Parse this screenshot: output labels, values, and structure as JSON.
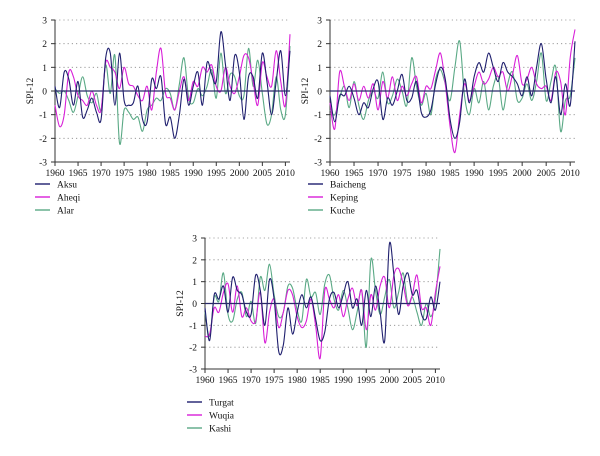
{
  "chart_data": [
    {
      "type": "line",
      "ylabel": "SPI-12",
      "ylim": [
        -3,
        3
      ],
      "yticks": [
        -3,
        -2,
        -1,
        0,
        1,
        2,
        3
      ],
      "xlim": [
        1960,
        2011
      ],
      "xticks": [
        "1960",
        "1965",
        "1970",
        "1975",
        "1980",
        "1985",
        "1990",
        "1995",
        "2000",
        "2005",
        "2010"
      ],
      "grid": "horizontal dotted",
      "legend_position": "below",
      "series": [
        {
          "name": "Aksu",
          "color": "#1f1f6e",
          "x": [
            1960,
            1961,
            1962,
            1963,
            1964,
            1965,
            1966,
            1967,
            1968,
            1969,
            1970,
            1971,
            1972,
            1973,
            1974,
            1975,
            1976,
            1977,
            1978,
            1979,
            1980,
            1981,
            1982,
            1983,
            1984,
            1985,
            1986,
            1987,
            1988,
            1989,
            1990,
            1991,
            1992,
            1993,
            1994,
            1995,
            1996,
            1997,
            1998,
            1999,
            2000,
            2001,
            2002,
            2003,
            2004,
            2005,
            2006,
            2007,
            2008,
            2009,
            2010,
            2011
          ],
          "values": [
            0.2,
            -0.7,
            0.8,
            0.5,
            -0.6,
            0.4,
            -1.1,
            -0.8,
            -0.3,
            -0.9,
            -1.2,
            1.4,
            1.6,
            -0.6,
            1.6,
            -0.4,
            -0.6,
            -0.5,
            0.2,
            -1.2,
            -1.3,
            0.5,
            0.1,
            0.6,
            -1.4,
            -1.1,
            -2.0,
            -1.0,
            0.5,
            -0.6,
            0.2,
            0.8,
            -0.6,
            1.2,
            0.7,
            0.4,
            2.5,
            1.1,
            -0.4,
            1.5,
            0.8,
            -1.2,
            0.6,
            0.6,
            -0.3,
            1.6,
            0.4,
            -1.0,
            0.4,
            1.7,
            -0.2,
            1.7
          ]
        },
        {
          "name": "Aheqi",
          "color": "#d81fd8",
          "x": [
            1960,
            1961,
            1962,
            1963,
            1964,
            1965,
            1966,
            1967,
            1968,
            1969,
            1970,
            1971,
            1972,
            1973,
            1974,
            1975,
            1976,
            1977,
            1978,
            1979,
            1980,
            1981,
            1982,
            1983,
            1984,
            1985,
            1986,
            1987,
            1988,
            1989,
            1990,
            1991,
            1992,
            1993,
            1994,
            1995,
            1996,
            1997,
            1998,
            1999,
            2000,
            2001,
            2002,
            2003,
            2004,
            2005,
            2006,
            2007,
            2008,
            2009,
            2010,
            2011
          ],
          "values": [
            -0.6,
            -1.5,
            -1.0,
            0.8,
            0.6,
            -0.2,
            -0.4,
            -0.6,
            0.0,
            -0.6,
            -0.8,
            1.2,
            1.0,
            0.8,
            0.1,
            1.0,
            0.3,
            0.2,
            -0.2,
            -0.4,
            0.2,
            -0.8,
            0.8,
            1.8,
            -0.1,
            -0.3,
            -0.8,
            0.0,
            0.6,
            -0.4,
            0.4,
            0.2,
            1.0,
            0.8,
            1.1,
            0.2,
            0.0,
            1.0,
            0.2,
            -0.1,
            0.6,
            1.5,
            1.4,
            0.4,
            -0.6,
            1.2,
            0.6,
            0.2,
            1.7,
            0.4,
            -0.6,
            2.4
          ]
        },
        {
          "name": "Alar",
          "color": "#5aa985",
          "x": [
            1960,
            1961,
            1962,
            1963,
            1964,
            1965,
            1966,
            1967,
            1968,
            1969,
            1970,
            1971,
            1972,
            1973,
            1974,
            1975,
            1976,
            1977,
            1978,
            1979,
            1980,
            1981,
            1982,
            1983,
            1984,
            1985,
            1986,
            1987,
            1988,
            1989,
            1990,
            1991,
            1992,
            1993,
            1994,
            1995,
            1996,
            1997,
            1998,
            1999,
            2000,
            2001,
            2002,
            2003,
            2004,
            2005,
            2006,
            2007,
            2008,
            2009,
            2010,
            2011
          ],
          "values": [
            0.1,
            -0.1,
            0.0,
            -0.4,
            -0.9,
            -0.2,
            0.6,
            -0.2,
            -0.5,
            -0.1,
            -0.8,
            1.1,
            -0.1,
            1.5,
            -2.2,
            -0.8,
            -0.9,
            -1.2,
            -1.1,
            -1.7,
            -0.8,
            -0.6,
            -0.3,
            -0.4,
            0.1,
            -0.1,
            -0.8,
            0.3,
            1.4,
            -0.3,
            -0.5,
            0.1,
            -0.2,
            0.2,
            0.9,
            -0.3,
            1.6,
            -0.1,
            0.7,
            0.6,
            -0.2,
            -0.2,
            1.8,
            0.2,
            1.3,
            -0.1,
            -1.4,
            -1.0,
            0.6,
            -0.8,
            -1.0,
            1.9
          ]
        }
      ]
    },
    {
      "type": "line",
      "ylabel": "SPI-12",
      "ylim": [
        -3,
        3
      ],
      "yticks": [
        -3,
        -2,
        -1,
        0,
        1,
        2,
        3
      ],
      "xlim": [
        1960,
        2011
      ],
      "xticks": [
        "1960",
        "1965",
        "1970",
        "1975",
        "1980",
        "1985",
        "1990",
        "1995",
        "2000",
        "2005",
        "2010"
      ],
      "grid": "horizontal dotted",
      "legend_position": "below",
      "series": [
        {
          "name": "Baicheng",
          "color": "#1f1f6e",
          "x": [
            1960,
            1961,
            1962,
            1963,
            1964,
            1965,
            1966,
            1967,
            1968,
            1969,
            1970,
            1971,
            1972,
            1973,
            1974,
            1975,
            1976,
            1977,
            1978,
            1979,
            1980,
            1981,
            1982,
            1983,
            1984,
            1985,
            1986,
            1987,
            1988,
            1989,
            1990,
            1991,
            1992,
            1993,
            1994,
            1995,
            1996,
            1997,
            1998,
            1999,
            2000,
            2001,
            2002,
            2003,
            2004,
            2005,
            2006,
            2007,
            2008,
            2009,
            2010,
            2011
          ],
          "values": [
            -0.2,
            -1.3,
            -0.2,
            -0.2,
            0.2,
            -0.3,
            -1.0,
            -0.5,
            -0.7,
            0.1,
            0.4,
            -1.2,
            -0.3,
            -0.6,
            0.0,
            0.7,
            -0.4,
            -0.3,
            0.4,
            -0.9,
            -1.1,
            -0.8,
            0.3,
            1.0,
            0.5,
            -1.2,
            -2.0,
            -1.3,
            0.5,
            -0.5,
            0.6,
            1.2,
            0.8,
            1.6,
            1.0,
            0.4,
            1.2,
            0.8,
            0.6,
            0.3,
            -0.2,
            0.6,
            -0.2,
            1.0,
            2.0,
            0.5,
            -0.5,
            0.6,
            -1.0,
            0.3,
            -0.6,
            2.1
          ]
        },
        {
          "name": "Keping",
          "color": "#d81fd8",
          "x": [
            1960,
            1961,
            1962,
            1963,
            1964,
            1965,
            1966,
            1967,
            1968,
            1969,
            1970,
            1971,
            1972,
            1973,
            1974,
            1975,
            1976,
            1977,
            1978,
            1979,
            1980,
            1981,
            1982,
            1983,
            1984,
            1985,
            1986,
            1987,
            1988,
            1989,
            1990,
            1991,
            1992,
            1993,
            1994,
            1995,
            1996,
            1997,
            1998,
            1999,
            2000,
            2001,
            2002,
            2003,
            2004,
            2005,
            2006,
            2007,
            2008,
            2009,
            2010,
            2011
          ],
          "values": [
            -0.5,
            -1.6,
            0.8,
            0.2,
            -0.4,
            0.3,
            -0.4,
            0.2,
            -0.3,
            0.3,
            -0.8,
            0.4,
            -0.3,
            0.6,
            -0.4,
            0.2,
            -0.2,
            0.3,
            0.6,
            -0.5,
            0.2,
            0.1,
            0.9,
            1.6,
            0.3,
            -1.5,
            -2.6,
            -1.0,
            0.3,
            -0.4,
            0.2,
            0.8,
            0.3,
            0.5,
            1.0,
            0.6,
            0.8,
            0.0,
            0.7,
            1.5,
            0.3,
            0.5,
            1.0,
            0.3,
            0.1,
            0.2,
            -0.4,
            0.8,
            0.4,
            -1.0,
            1.4,
            2.6
          ]
        },
        {
          "name": "Kuche",
          "color": "#5aa985",
          "x": [
            1960,
            1961,
            1962,
            1963,
            1964,
            1965,
            1966,
            1967,
            1968,
            1969,
            1970,
            1971,
            1972,
            1973,
            1974,
            1975,
            1976,
            1977,
            1978,
            1979,
            1980,
            1981,
            1982,
            1983,
            1984,
            1985,
            1986,
            1987,
            1988,
            1989,
            1990,
            1991,
            1992,
            1993,
            1994,
            1995,
            1996,
            1997,
            1998,
            1999,
            2000,
            2001,
            2002,
            2003,
            2004,
            2005,
            2006,
            2007,
            2008,
            2009,
            2010,
            2011
          ],
          "values": [
            -0.8,
            -1.0,
            -0.3,
            0.2,
            -0.7,
            0.4,
            -0.6,
            -1.2,
            -0.4,
            0.0,
            -0.3,
            0.8,
            -0.5,
            -0.2,
            0.5,
            0.0,
            -0.6,
            1.4,
            0.2,
            -0.6,
            -0.1,
            -1.0,
            0.5,
            0.9,
            0.3,
            -0.4,
            1.0,
            2.1,
            -0.2,
            -1.0,
            0.1,
            -0.5,
            0.4,
            -0.8,
            0.2,
            0.6,
            -0.8,
            0.3,
            0.8,
            -0.4,
            -0.3,
            0.3,
            -0.4,
            0.4,
            1.6,
            -0.4,
            0.4,
            1.0,
            -1.7,
            -0.4,
            -0.2,
            1.4
          ]
        }
      ]
    },
    {
      "type": "line",
      "ylabel": "SPI-12",
      "ylim": [
        -3,
        3
      ],
      "yticks": [
        -3,
        -2,
        -1,
        0,
        1,
        2,
        3
      ],
      "xlim": [
        1960,
        2011
      ],
      "xticks": [
        "1960",
        "1965",
        "1970",
        "1975",
        "1980",
        "1985",
        "1990",
        "1995",
        "2000",
        "2005",
        "2010"
      ],
      "grid": "horizontal dotted",
      "legend_position": "below",
      "series": [
        {
          "name": "Turgat",
          "color": "#1f1f6e",
          "x": [
            1960,
            1961,
            1962,
            1963,
            1964,
            1965,
            1966,
            1967,
            1968,
            1969,
            1970,
            1971,
            1972,
            1973,
            1974,
            1975,
            1976,
            1977,
            1978,
            1979,
            1980,
            1981,
            1982,
            1983,
            1984,
            1985,
            1986,
            1987,
            1988,
            1989,
            1990,
            1991,
            1992,
            1993,
            1994,
            1995,
            1996,
            1997,
            1998,
            1999,
            2000,
            2001,
            2002,
            2003,
            2004,
            2005,
            2006,
            2007,
            2008,
            2009,
            2010,
            2011
          ],
          "values": [
            -0.2,
            -1.7,
            0.4,
            0.2,
            0.8,
            -0.4,
            1.2,
            0.6,
            0.4,
            -0.4,
            -0.5,
            1.3,
            0.6,
            -1.0,
            1.1,
            0.2,
            -2.2,
            -1.9,
            -0.2,
            -1.4,
            -0.4,
            0.4,
            -0.2,
            0.3,
            -0.7,
            -1.7,
            -1.3,
            0.2,
            0.5,
            -0.2,
            0.4,
            1.0,
            -0.2,
            0.2,
            -1.0,
            0.6,
            -0.6,
            0.8,
            -0.4,
            -1.7,
            2.7,
            1.3,
            -0.5,
            0.8,
            1.4,
            0.4,
            0.6,
            -0.5,
            -0.7,
            0.3,
            -0.3,
            1.0
          ]
        },
        {
          "name": "Wuqia",
          "color": "#d81fd8",
          "x": [
            1960,
            1961,
            1962,
            1963,
            1964,
            1965,
            1966,
            1967,
            1968,
            1969,
            1970,
            1971,
            1972,
            1973,
            1974,
            1975,
            1976,
            1977,
            1978,
            1979,
            1980,
            1981,
            1982,
            1983,
            1984,
            1985,
            1986,
            1987,
            1988,
            1989,
            1990,
            1991,
            1992,
            1993,
            1994,
            1995,
            1996,
            1997,
            1998,
            1999,
            2000,
            2001,
            2002,
            2003,
            2004,
            2005,
            2006,
            2007,
            2008,
            2009,
            2010,
            2011
          ],
          "values": [
            -1.5,
            -1.4,
            -0.2,
            -0.4,
            0.5,
            0.9,
            -0.4,
            0.8,
            -0.6,
            -0.2,
            -0.8,
            -0.8,
            0.5,
            -1.8,
            -0.4,
            0.2,
            -1.1,
            -0.4,
            0.6,
            0.4,
            -0.6,
            -1.1,
            -0.8,
            0.2,
            -1.0,
            -2.5,
            0.6,
            0.2,
            -0.2,
            0.4,
            -0.6,
            0.2,
            0.7,
            -0.1,
            0.6,
            -1.2,
            0.4,
            -0.3,
            0.8,
            1.2,
            -0.2,
            1.3,
            1.6,
            0.9,
            -0.1,
            0.4,
            1.3,
            -0.2,
            -0.2,
            -1.0,
            0.5,
            1.7
          ]
        },
        {
          "name": "Kashi",
          "color": "#5aa985",
          "x": [
            1960,
            1961,
            1962,
            1963,
            1964,
            1965,
            1966,
            1967,
            1968,
            1969,
            1970,
            1971,
            1972,
            1973,
            1974,
            1975,
            1976,
            1977,
            1978,
            1979,
            1980,
            1981,
            1982,
            1983,
            1984,
            1985,
            1986,
            1987,
            1988,
            1989,
            1990,
            1991,
            1992,
            1993,
            1994,
            1995,
            1996,
            1997,
            1998,
            1999,
            2000,
            2001,
            2002,
            2003,
            2004,
            2005,
            2006,
            2007,
            2008,
            2009,
            2010,
            2011
          ],
          "values": [
            -0.4,
            -1.5,
            0.3,
            0.1,
            1.4,
            -0.5,
            -0.8,
            0.2,
            0.5,
            -0.6,
            0.1,
            -0.9,
            1.2,
            0.6,
            1.8,
            0.4,
            -0.6,
            -0.4,
            0.8,
            0.7,
            -0.3,
            -0.8,
            1.1,
            0.3,
            0.5,
            -0.5,
            0.9,
            1.3,
            0.2,
            -0.3,
            0.6,
            -0.2,
            -1.2,
            -0.4,
            0.6,
            -2.0,
            2.0,
            0.6,
            -0.5,
            0.3,
            1.1,
            -0.2,
            0.5,
            1.4,
            0.0,
            0.3,
            -0.4,
            -1.0,
            0.0,
            -0.6,
            0.2,
            2.5
          ]
        }
      ]
    }
  ]
}
